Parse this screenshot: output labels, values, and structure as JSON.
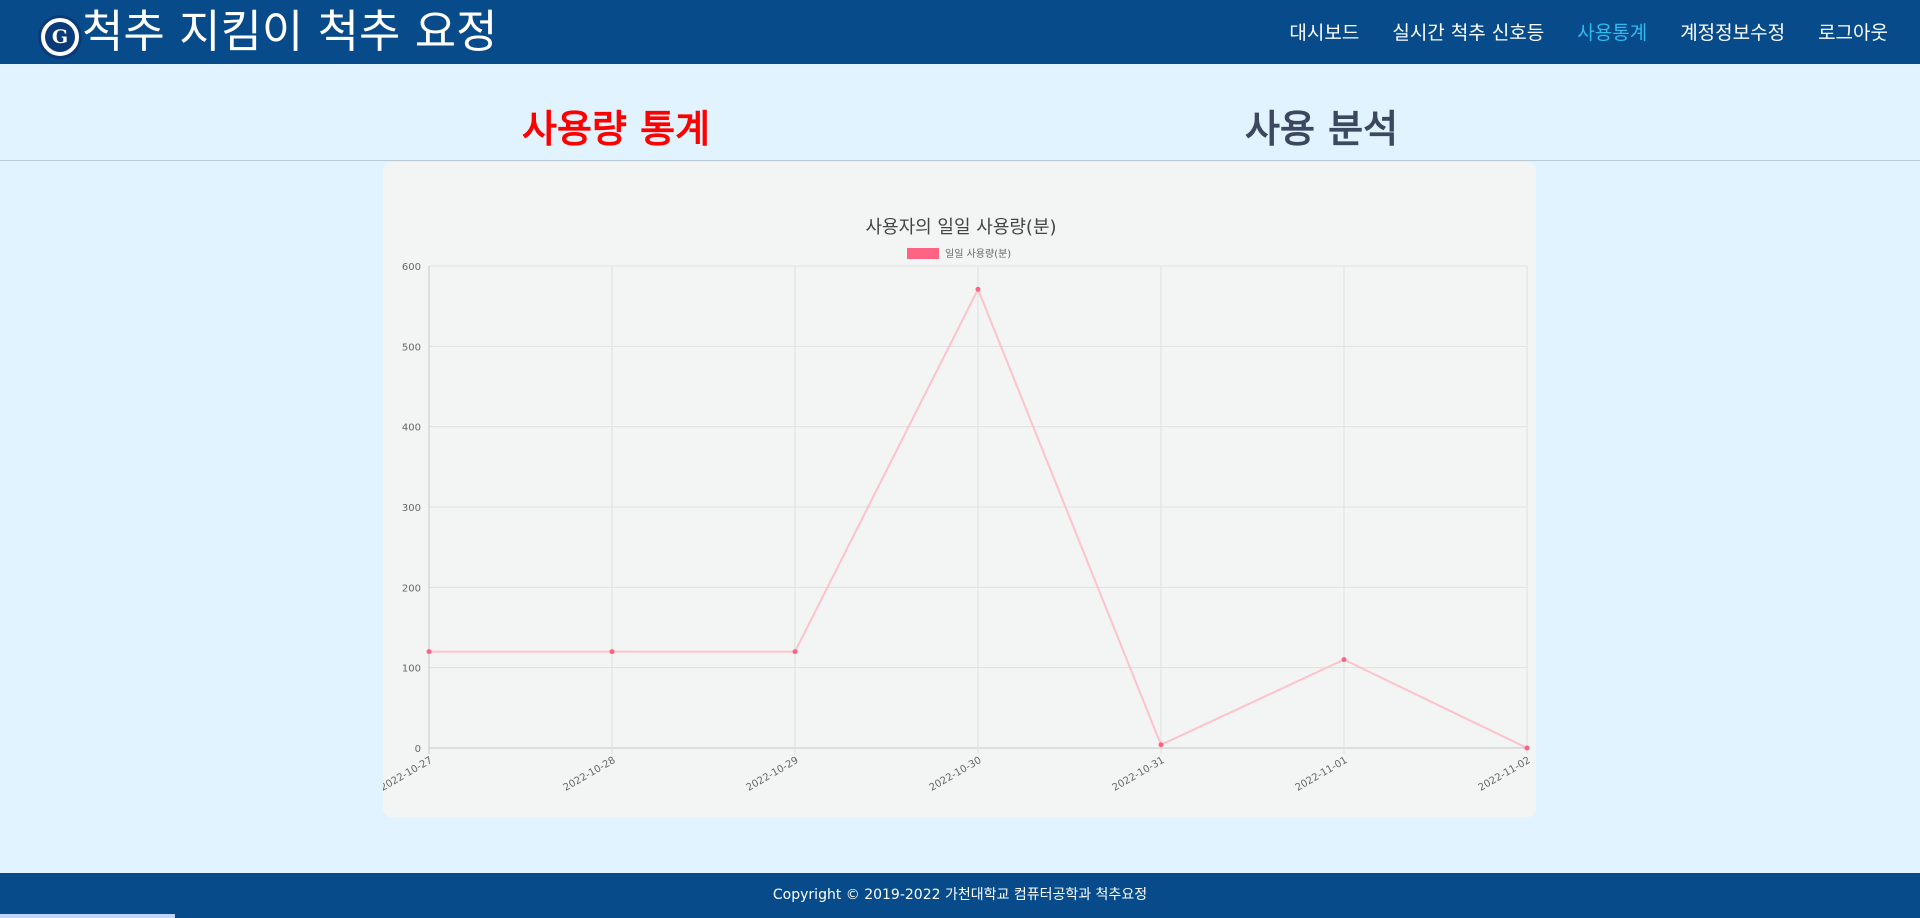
{
  "header": {
    "title": "척추 지킴이 척추 요정",
    "logo_letter": "G",
    "nav": [
      {
        "label": "대시보드",
        "active": false
      },
      {
        "label": "실시간 척추 신호등",
        "active": false
      },
      {
        "label": "사용통계",
        "active": true
      },
      {
        "label": "계정정보수정",
        "active": false
      },
      {
        "label": "로그아웃",
        "active": false
      }
    ]
  },
  "tabs": {
    "usage": "사용량 통계",
    "analysis": "사용 분석"
  },
  "colors": {
    "header_bg": "#074b8a",
    "active_nav": "#2ebbf0",
    "active_tab": "#ff0000",
    "line": "#ffc2cc",
    "point": "#ff6384"
  },
  "chart_data": {
    "type": "line",
    "title": "사용자의 일일 사용량(분)",
    "legend": "일일 사용량(분)",
    "legend_position": "top",
    "x": [
      "2022-10-27",
      "2022-10-28",
      "2022-10-29",
      "2022-10-30",
      "2022-10-31",
      "2022-11-01",
      "2022-11-02"
    ],
    "series": [
      {
        "name": "일일 사용량(분)",
        "values": [
          120,
          120,
          120,
          571,
          4,
          110,
          0
        ]
      }
    ],
    "ylim": [
      0,
      600
    ],
    "yticks": [
      0,
      100,
      200,
      300,
      400,
      500,
      600
    ],
    "grid": true
  },
  "footer": {
    "copyright": "Copyright © 2019-2022 가천대학교 컴퓨터공학과 척추요정"
  }
}
